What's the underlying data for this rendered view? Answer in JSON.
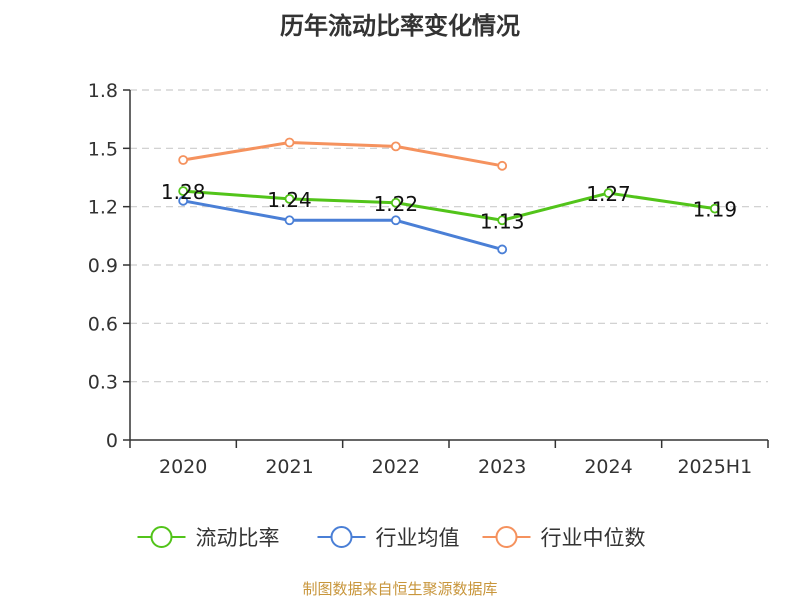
{
  "chart_data": {
    "type": "line",
    "title": "历年流动比率变化情况",
    "categories": [
      "2020",
      "2021",
      "2022",
      "2023",
      "2024",
      "2025H1"
    ],
    "ylim": [
      0,
      1.8
    ],
    "yticks": [
      "0",
      "0.3",
      "0.6",
      "0.9",
      "1.2",
      "1.5",
      "1.8"
    ],
    "grid": true,
    "legend_position": "bottom",
    "series": [
      {
        "name": "流动比率",
        "color": "#52c41a",
        "values": [
          1.28,
          1.24,
          1.22,
          1.13,
          1.27,
          1.19
        ],
        "labels": [
          "1.28",
          "1.24",
          "1.22",
          "1.13",
          "1.27",
          "1.19"
        ]
      },
      {
        "name": "行业均值",
        "color": "#4a7fd6",
        "values": [
          1.23,
          1.13,
          1.13,
          0.98,
          null,
          null
        ]
      },
      {
        "name": "行业中位数",
        "color": "#f5925e",
        "values": [
          1.44,
          1.53,
          1.51,
          1.41,
          null,
          null
        ]
      }
    ]
  },
  "footer": "制图数据来自恒生聚源数据库"
}
